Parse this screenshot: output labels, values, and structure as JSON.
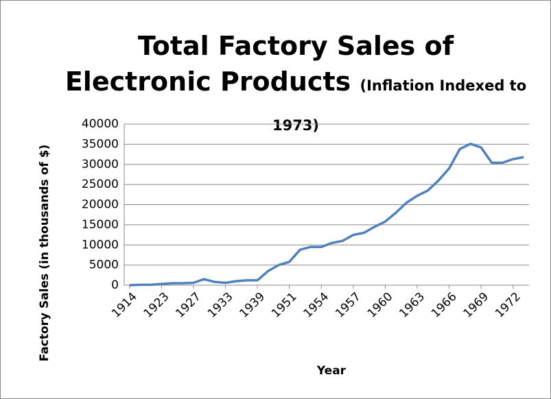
{
  "chart_data": {
    "type": "line",
    "title": "Total Factory Sales of Electronic Products",
    "subtitle": "(Inflation Indexed to 1973)",
    "x_label": "Year",
    "y_label": "Factory Sales (in thousands of $)",
    "categories": [
      "1914",
      null,
      null,
      "1923",
      null,
      null,
      "1927",
      null,
      null,
      "1933",
      null,
      null,
      "1939",
      null,
      null,
      "1951",
      null,
      null,
      "1954",
      null,
      null,
      "1957",
      null,
      null,
      "1960",
      null,
      null,
      "1963",
      null,
      null,
      "1966",
      null,
      null,
      "1969",
      null,
      null,
      "1972",
      null
    ],
    "series": [
      {
        "name": "Factory Sales",
        "color": "#4f81bd",
        "values": [
          0,
          100,
          100,
          300,
          500,
          500,
          600,
          1500,
          800,
          600,
          1000,
          1200,
          1200,
          3500,
          5000,
          5800,
          8800,
          9500,
          9500,
          10500,
          11000,
          12500,
          13000,
          14500,
          15800,
          18000,
          20500,
          22200,
          23500,
          26000,
          29000,
          33800,
          35100,
          34200,
          30400,
          30400,
          31300,
          31800
        ]
      }
    ],
    "ylim": [
      0,
      40000
    ],
    "yticks": [
      0,
      5000,
      10000,
      15000,
      20000,
      25000,
      30000,
      35000,
      40000
    ],
    "grid": true
  }
}
